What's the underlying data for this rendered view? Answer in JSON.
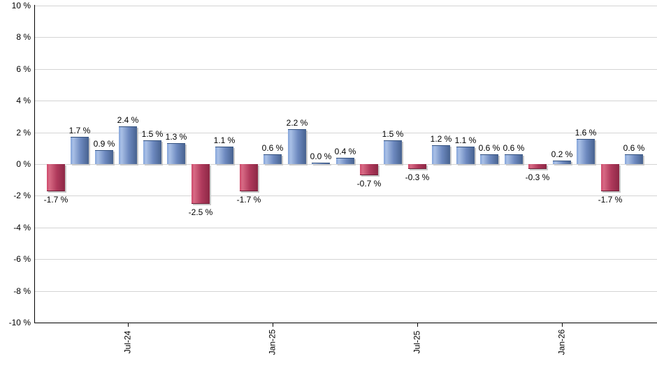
{
  "chart_data": {
    "type": "bar",
    "title": "",
    "xlabel": "",
    "ylabel": "",
    "ylim": [
      -10,
      10
    ],
    "grid": true,
    "legend": "none",
    "values": [
      -1.7,
      1.7,
      0.9,
      2.4,
      1.5,
      1.3,
      -2.5,
      1.1,
      -1.7,
      0.6,
      2.2,
      0.0,
      0.4,
      -0.7,
      1.5,
      -0.3,
      1.2,
      1.1,
      0.6,
      0.6,
      -0.3,
      0.2,
      1.6,
      -1.7,
      0.6
    ],
    "bar_labels": [
      "-1.7 %",
      "1.7 %",
      "0.9 %",
      "2.4 %",
      "1.5 %",
      "1.3 %",
      "-2.5 %",
      "1.1 %",
      "-1.7 %",
      "0.6 %",
      "2.2 %",
      "0.0 %",
      "0.4 %",
      "-0.7 %",
      "1.5 %",
      "-0.3 %",
      "1.2 %",
      "1.1 %",
      "0.6 %",
      "0.6 %",
      "-0.3 %",
      "0.2 %",
      "1.6 %",
      "-1.7 %",
      "0.6 %"
    ],
    "x_ticks": [
      {
        "label": "Jul-24",
        "bar_index": 3
      },
      {
        "label": "Jan-25",
        "bar_index": 9
      },
      {
        "label": "Jul-25",
        "bar_index": 15
      },
      {
        "label": "Jan-26",
        "bar_index": 21
      }
    ],
    "y_ticks": [
      {
        "label": "10 %",
        "value": 10
      },
      {
        "label": "8 %",
        "value": 8
      },
      {
        "label": "6 %",
        "value": 6
      },
      {
        "label": "4 %",
        "value": 4
      },
      {
        "label": "2 %",
        "value": 2
      },
      {
        "label": "0 %",
        "value": 0
      },
      {
        "label": "-2 %",
        "value": -2
      },
      {
        "label": "-4 %",
        "value": -4
      },
      {
        "label": "-6 %",
        "value": -6
      },
      {
        "label": "-8 %",
        "value": -8
      },
      {
        "label": "-10 %",
        "value": -10
      }
    ],
    "colors": {
      "positive_gradient": [
        "#84a4da",
        "#a9c0e6",
        "#6d89bf",
        "#47628f"
      ],
      "negative_gradient": [
        "#d04a6c",
        "#d76a84",
        "#b03a5c",
        "#8c2845"
      ],
      "grid": "#d4d4d4",
      "axis": "#000000",
      "shadow": "#c9c9c9"
    }
  }
}
